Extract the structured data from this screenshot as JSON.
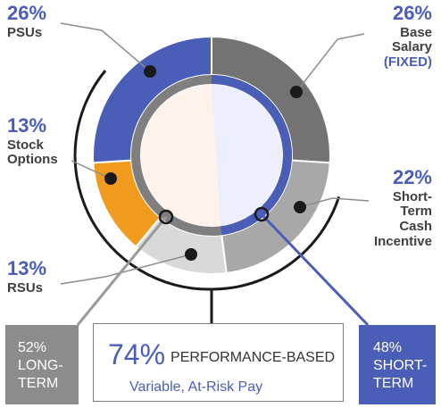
{
  "chart_data": {
    "type": "pie",
    "slices": [
      {
        "pct": "26%",
        "label": "Base",
        "label2": "Salary",
        "sub": "(FIXED)",
        "value": 26,
        "color": "#737373"
      },
      {
        "pct": "22%",
        "label": "Short-",
        "label2": "Term",
        "label3": "Cash",
        "label4": "Incentive",
        "value": 22,
        "color": "#a8a8a8"
      },
      {
        "pct": "13%",
        "label": "RSUs",
        "value": 13,
        "color": "#d9d9d9"
      },
      {
        "pct": "13%",
        "label": "Stock",
        "label2": "Options",
        "value": 13,
        "color": "#f09b1e"
      },
      {
        "pct": "26%",
        "label": "PSUs",
        "value": 26,
        "color": "#4a5eb8"
      }
    ],
    "inner_ring": {
      "long_term_color": "#7f7f7f",
      "short_term_color": "#4a5eb8"
    }
  },
  "boxes": {
    "long": {
      "pct": "52%",
      "line1": "LONG-",
      "line2": "TERM"
    },
    "short": {
      "pct": "48%",
      "line1": "SHORT-",
      "line2": "TERM"
    },
    "center": {
      "pct": "74%",
      "head": "PERFORMANCE-BASED",
      "sub": "Variable, At-Risk Pay"
    }
  }
}
